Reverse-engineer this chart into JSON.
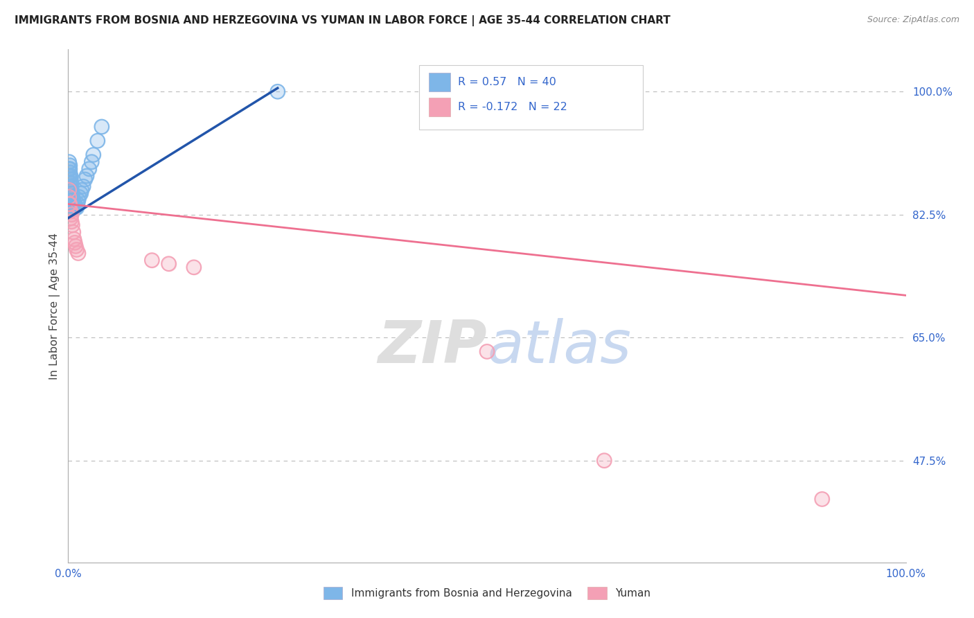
{
  "title": "IMMIGRANTS FROM BOSNIA AND HERZEGOVINA VS YUMAN IN LABOR FORCE | AGE 35-44 CORRELATION CHART",
  "source": "Source: ZipAtlas.com",
  "ylabel": "In Labor Force | Age 35-44",
  "xlim": [
    0.0,
    1.0
  ],
  "ylim": [
    0.33,
    1.06
  ],
  "yticks": [
    0.475,
    0.65,
    0.825,
    1.0
  ],
  "ytick_labels": [
    "47.5%",
    "65.0%",
    "82.5%",
    "100.0%"
  ],
  "blue_R": 0.57,
  "blue_N": 40,
  "pink_R": -0.172,
  "pink_N": 22,
  "blue_color": "#7EB6E8",
  "pink_color": "#F4A0B5",
  "blue_line_color": "#2255AA",
  "pink_line_color": "#EE7090",
  "legend_blue_label": "Immigrants from Bosnia and Herzegovina",
  "legend_pink_label": "Yuman",
  "background_color": "#FFFFFF",
  "grid_color": "#BBBBBB",
  "blue_x": [
    0.001,
    0.001,
    0.001,
    0.002,
    0.002,
    0.002,
    0.002,
    0.002,
    0.003,
    0.003,
    0.003,
    0.003,
    0.003,
    0.004,
    0.004,
    0.004,
    0.004,
    0.005,
    0.005,
    0.005,
    0.006,
    0.006,
    0.007,
    0.008,
    0.009,
    0.01,
    0.011,
    0.012,
    0.013,
    0.015,
    0.016,
    0.018,
    0.02,
    0.022,
    0.025,
    0.028,
    0.03,
    0.035,
    0.04,
    0.25
  ],
  "blue_y": [
    0.88,
    0.89,
    0.9,
    0.87,
    0.88,
    0.885,
    0.89,
    0.895,
    0.86,
    0.865,
    0.87,
    0.875,
    0.88,
    0.85,
    0.855,
    0.86,
    0.865,
    0.845,
    0.85,
    0.855,
    0.84,
    0.845,
    0.835,
    0.84,
    0.835,
    0.835,
    0.84,
    0.845,
    0.85,
    0.855,
    0.86,
    0.865,
    0.875,
    0.88,
    0.89,
    0.9,
    0.91,
    0.93,
    0.95,
    1.0
  ],
  "pink_x": [
    0.001,
    0.001,
    0.001,
    0.002,
    0.002,
    0.003,
    0.003,
    0.004,
    0.004,
    0.005,
    0.006,
    0.007,
    0.008,
    0.009,
    0.01,
    0.012,
    0.1,
    0.12,
    0.15,
    0.5,
    0.64,
    0.9
  ],
  "pink_y": [
    0.84,
    0.85,
    0.86,
    0.83,
    0.84,
    0.82,
    0.83,
    0.815,
    0.825,
    0.81,
    0.8,
    0.79,
    0.785,
    0.78,
    0.775,
    0.77,
    0.76,
    0.755,
    0.75,
    0.63,
    0.475,
    0.42
  ],
  "blue_line_x0": 0.0,
  "blue_line_y0": 0.82,
  "blue_line_x1": 0.25,
  "blue_line_y1": 1.005,
  "pink_line_x0": 0.0,
  "pink_line_y0": 0.84,
  "pink_line_x1": 1.0,
  "pink_line_y1": 0.71
}
